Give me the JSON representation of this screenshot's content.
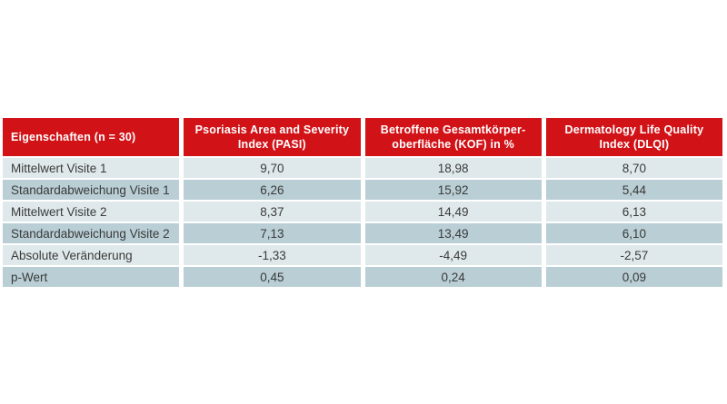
{
  "colors": {
    "header_background": "#d11217",
    "header_text": "#ffffff",
    "row_light": "#dfe9ec",
    "row_dark": "#b9ced5",
    "body_text": "#3a3a39",
    "page_background": "#ffffff"
  },
  "table": {
    "header": {
      "col1": "Eigenschaften (n = 30)",
      "col2_line1": "Psoriasis Area and Severity",
      "col2_line2": "Index (PASI)",
      "col3_line1": "Betroffene Gesamtkörper-",
      "col3_line2": "oberfläche (KOF) in %",
      "col4_line1": "Dermatology Life Quality",
      "col4_line2": "Index (DLQI)"
    },
    "rows": [
      {
        "label": "Mittelwert Visite 1",
        "values": [
          "9,70",
          "18,98",
          "8,70"
        ]
      },
      {
        "label": "Standardabweichung Visite 1",
        "values": [
          "6,26",
          "15,92",
          "5,44"
        ]
      },
      {
        "label": "Mittelwert Visite 2",
        "values": [
          "8,37",
          "14,49",
          "6,13"
        ]
      },
      {
        "label": "Standardabweichung Visite 2",
        "values": [
          "7,13",
          "13,49",
          "6,10"
        ]
      },
      {
        "label": "Absolute Veränderung",
        "values": [
          "-1,33",
          "-4,49",
          "-2,57"
        ]
      },
      {
        "label": "p-Wert",
        "values": [
          "0,45",
          "0,24",
          "0,09"
        ]
      }
    ]
  }
}
